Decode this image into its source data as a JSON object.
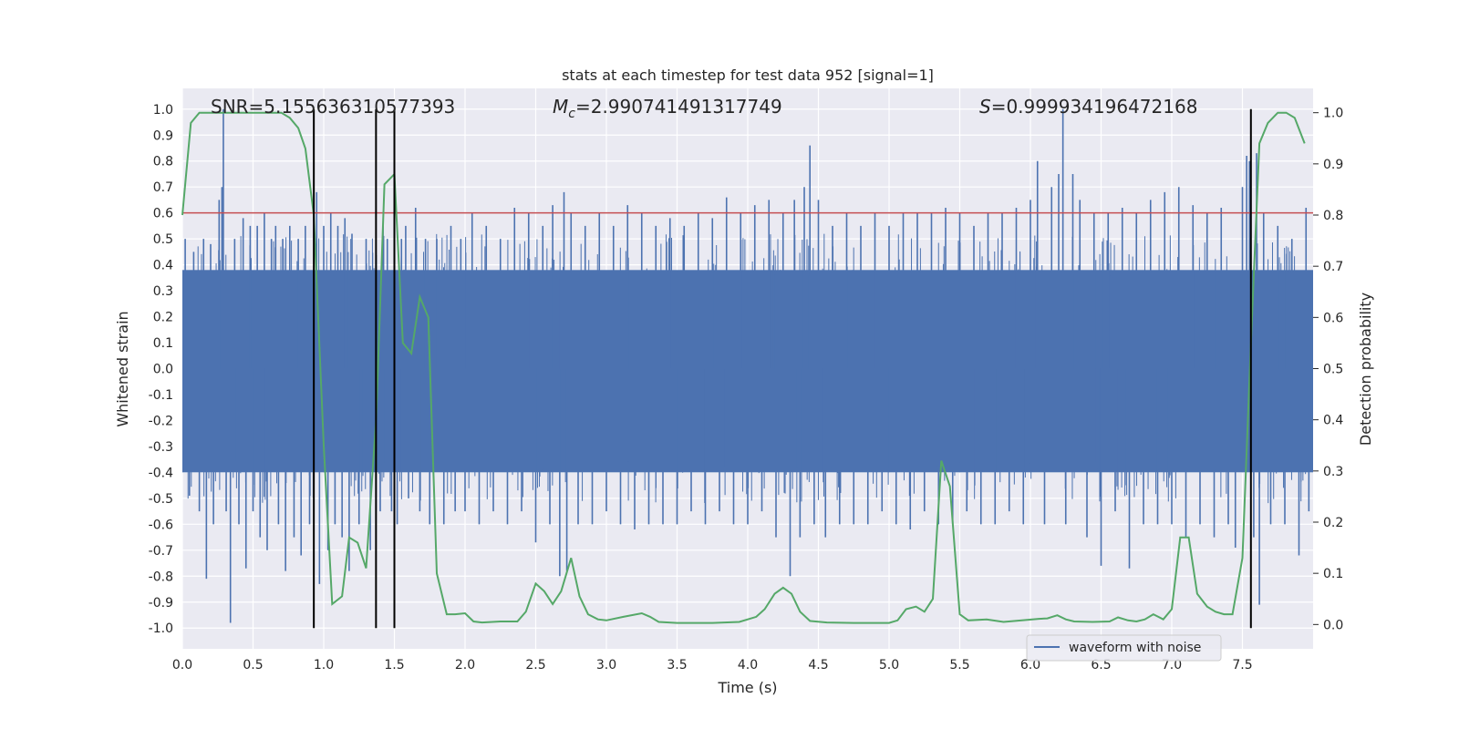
{
  "chart_data": {
    "type": "line",
    "title": "stats at each timestep for test data 952 [signal=1]",
    "xlabel": "Time (s)",
    "ylabel": "Whitened strain",
    "y2label": "Detection probability",
    "xlim": [
      0.0,
      8.0
    ],
    "ylim": [
      -1.08,
      1.08
    ],
    "y2lim": [
      -0.0475,
      1.0475
    ],
    "xticks": [
      "0.0",
      "0.5",
      "1.0",
      "1.5",
      "2.0",
      "2.5",
      "3.0",
      "3.5",
      "4.0",
      "4.5",
      "5.0",
      "5.5",
      "6.0",
      "6.5",
      "7.0",
      "7.5"
    ],
    "xtick_values": [
      0,
      0.5,
      1,
      1.5,
      2,
      2.5,
      3,
      3.5,
      4,
      4.5,
      5,
      5.5,
      6,
      6.5,
      7,
      7.5
    ],
    "yticks": [
      "1.0",
      "0.9",
      "0.8",
      "0.7",
      "0.6",
      "0.5",
      "0.4",
      "0.3",
      "0.2",
      "0.1",
      "0.0",
      "-0.1",
      "-0.2",
      "-0.3",
      "-0.4",
      "-0.5",
      "-0.6",
      "-0.7",
      "-0.8",
      "-0.9",
      "-1.0"
    ],
    "ytick_values": [
      1.0,
      0.9,
      0.8,
      0.7,
      0.6,
      0.5,
      0.4,
      0.3,
      0.2,
      0.1,
      0.0,
      -0.1,
      -0.2,
      -0.3,
      -0.4,
      -0.5,
      -0.6,
      -0.7,
      -0.8,
      -0.9,
      -1.0
    ],
    "y2ticks": [
      "1.0",
      "0.9",
      "0.8",
      "0.7",
      "0.6",
      "0.5",
      "0.4",
      "0.3",
      "0.2",
      "0.1",
      "0.0"
    ],
    "y2tick_values": [
      1.0,
      0.9,
      0.8,
      0.7,
      0.6,
      0.5,
      0.4,
      0.3,
      0.2,
      0.1,
      0.0
    ],
    "annotations": {
      "snr": "SNR=5.155636310577393",
      "mc_symbol": "M",
      "mc_subscript": "c",
      "mc_value": "=2.990741491317749",
      "s_symbol": "S",
      "s_value": "=0.999934196472168"
    },
    "threshold": 0.6,
    "vlines": [
      0.93,
      1.37,
      1.5,
      7.56
    ],
    "legend": {
      "label": "waveform with noise",
      "location": "lower-right"
    },
    "series": [
      {
        "name": "waveform with noise",
        "axis": "left",
        "color": "#4c72b0",
        "band_envelope": {
          "upper": 0.38,
          "lower": -0.4
        },
        "spikes": [
          [
            0.02,
            0.5
          ],
          [
            0.05,
            -0.49
          ],
          [
            0.08,
            0.45
          ],
          [
            0.12,
            -0.55
          ],
          [
            0.15,
            0.5
          ],
          [
            0.17,
            -0.81
          ],
          [
            0.2,
            0.48
          ],
          [
            0.22,
            -0.6
          ],
          [
            0.26,
            0.65
          ],
          [
            0.28,
            0.7
          ],
          [
            0.29,
            1.0
          ],
          [
            0.31,
            -0.55
          ],
          [
            0.34,
            -0.98
          ],
          [
            0.37,
            0.5
          ],
          [
            0.4,
            -0.6
          ],
          [
            0.43,
            0.58
          ],
          [
            0.45,
            -0.77
          ],
          [
            0.48,
            0.55
          ],
          [
            0.5,
            -0.55
          ],
          [
            0.53,
            0.55
          ],
          [
            0.55,
            -0.65
          ],
          [
            0.58,
            0.6
          ],
          [
            0.6,
            -0.7
          ],
          [
            0.63,
            0.5
          ],
          [
            0.66,
            0.55
          ],
          [
            0.68,
            -0.6
          ],
          [
            0.71,
            0.5
          ],
          [
            0.73,
            -0.78
          ],
          [
            0.76,
            0.55
          ],
          [
            0.79,
            -0.65
          ],
          [
            0.82,
            0.5
          ],
          [
            0.84,
            -0.72
          ],
          [
            0.87,
            0.55
          ],
          [
            0.9,
            -0.6
          ],
          [
            0.95,
            0.68
          ],
          [
            0.97,
            -0.83
          ],
          [
            1.0,
            0.55
          ],
          [
            1.03,
            -0.7
          ],
          [
            1.05,
            0.6
          ],
          [
            1.08,
            -0.6
          ],
          [
            1.1,
            0.55
          ],
          [
            1.13,
            -0.65
          ],
          [
            1.15,
            0.58
          ],
          [
            1.18,
            -0.78
          ],
          [
            1.2,
            0.52
          ],
          [
            1.25,
            -0.6
          ],
          [
            1.3,
            0.5
          ],
          [
            1.33,
            -0.7
          ],
          [
            1.4,
            -0.55
          ],
          [
            1.42,
            0.55
          ],
          [
            1.45,
            0.5
          ],
          [
            1.48,
            -0.55
          ],
          [
            1.52,
            -0.6
          ],
          [
            1.55,
            0.5
          ],
          [
            1.58,
            0.55
          ],
          [
            1.6,
            -0.5
          ],
          [
            1.65,
            0.62
          ],
          [
            1.68,
            -0.55
          ],
          [
            1.72,
            0.5
          ],
          [
            1.75,
            -0.6
          ],
          [
            1.8,
            0.5
          ],
          [
            1.85,
            -0.6
          ],
          [
            1.9,
            0.55
          ],
          [
            1.93,
            -0.55
          ],
          [
            1.97,
            0.5
          ],
          [
            2.0,
            -0.55
          ],
          [
            2.05,
            0.6
          ],
          [
            2.1,
            -0.6
          ],
          [
            2.15,
            0.55
          ],
          [
            2.2,
            -0.55
          ],
          [
            2.25,
            0.5
          ],
          [
            2.3,
            -0.6
          ],
          [
            2.35,
            0.62
          ],
          [
            2.4,
            -0.55
          ],
          [
            2.45,
            0.6
          ],
          [
            2.5,
            -0.67
          ],
          [
            2.55,
            0.55
          ],
          [
            2.6,
            -0.6
          ],
          [
            2.62,
            0.63
          ],
          [
            2.67,
            -0.8
          ],
          [
            2.7,
            0.68
          ],
          [
            2.72,
            -0.78
          ],
          [
            2.75,
            0.6
          ],
          [
            2.8,
            -0.6
          ],
          [
            2.85,
            0.55
          ],
          [
            2.9,
            -0.6
          ],
          [
            2.95,
            0.6
          ],
          [
            3.0,
            -0.55
          ],
          [
            3.05,
            0.55
          ],
          [
            3.1,
            -0.6
          ],
          [
            3.15,
            0.63
          ],
          [
            3.2,
            -0.62
          ],
          [
            3.25,
            0.6
          ],
          [
            3.3,
            -0.6
          ],
          [
            3.35,
            0.55
          ],
          [
            3.4,
            -0.6
          ],
          [
            3.45,
            0.58
          ],
          [
            3.5,
            -0.6
          ],
          [
            3.55,
            0.55
          ],
          [
            3.6,
            -0.55
          ],
          [
            3.65,
            0.6
          ],
          [
            3.7,
            -0.6
          ],
          [
            3.75,
            0.58
          ],
          [
            3.8,
            -0.55
          ],
          [
            3.85,
            0.66
          ],
          [
            3.9,
            -0.6
          ],
          [
            3.95,
            0.6
          ],
          [
            4.0,
            -0.6
          ],
          [
            4.05,
            0.63
          ],
          [
            4.1,
            -0.55
          ],
          [
            4.15,
            0.65
          ],
          [
            4.2,
            -0.65
          ],
          [
            4.25,
            0.6
          ],
          [
            4.3,
            -0.8
          ],
          [
            4.33,
            0.65
          ],
          [
            4.37,
            -0.65
          ],
          [
            4.4,
            0.7
          ],
          [
            4.44,
            0.86
          ],
          [
            4.47,
            -0.6
          ],
          [
            4.5,
            0.65
          ],
          [
            4.55,
            -0.65
          ],
          [
            4.6,
            0.55
          ],
          [
            4.65,
            -0.6
          ],
          [
            4.7,
            0.6
          ],
          [
            4.75,
            -0.6
          ],
          [
            4.8,
            0.55
          ],
          [
            4.85,
            -0.6
          ],
          [
            4.9,
            0.6
          ],
          [
            4.95,
            -0.55
          ],
          [
            5.0,
            0.55
          ],
          [
            5.05,
            -0.6
          ],
          [
            5.1,
            0.6
          ],
          [
            5.15,
            -0.62
          ],
          [
            5.2,
            0.6
          ],
          [
            5.25,
            -0.55
          ],
          [
            5.3,
            0.6
          ],
          [
            5.35,
            -0.6
          ],
          [
            5.4,
            0.62
          ],
          [
            5.45,
            -0.6
          ],
          [
            5.5,
            0.6
          ],
          [
            5.55,
            -0.55
          ],
          [
            5.6,
            0.55
          ],
          [
            5.65,
            -0.6
          ],
          [
            5.7,
            0.6
          ],
          [
            5.75,
            -0.6
          ],
          [
            5.8,
            0.6
          ],
          [
            5.85,
            -0.55
          ],
          [
            5.9,
            0.62
          ],
          [
            5.95,
            -0.6
          ],
          [
            6.0,
            0.65
          ],
          [
            6.05,
            0.8
          ],
          [
            6.1,
            -0.6
          ],
          [
            6.15,
            0.7
          ],
          [
            6.2,
            0.75
          ],
          [
            6.23,
            1.0
          ],
          [
            6.25,
            -0.6
          ],
          [
            6.3,
            0.75
          ],
          [
            6.35,
            0.65
          ],
          [
            6.4,
            -0.65
          ],
          [
            6.45,
            0.6
          ],
          [
            6.5,
            -0.76
          ],
          [
            6.55,
            0.6
          ],
          [
            6.6,
            -0.55
          ],
          [
            6.65,
            0.62
          ],
          [
            6.7,
            -0.77
          ],
          [
            6.75,
            0.6
          ],
          [
            6.8,
            -0.6
          ],
          [
            6.85,
            0.65
          ],
          [
            6.9,
            -0.6
          ],
          [
            6.95,
            0.68
          ],
          [
            7.0,
            -0.6
          ],
          [
            7.05,
            0.7
          ],
          [
            7.1,
            -0.65
          ],
          [
            7.15,
            0.63
          ],
          [
            7.2,
            -0.6
          ],
          [
            7.25,
            0.6
          ],
          [
            7.3,
            -0.65
          ],
          [
            7.35,
            0.62
          ],
          [
            7.4,
            -0.6
          ],
          [
            7.45,
            -0.69
          ],
          [
            7.5,
            0.7
          ],
          [
            7.53,
            0.82
          ],
          [
            7.55,
            0.8
          ],
          [
            7.58,
            -0.65
          ],
          [
            7.6,
            0.83
          ],
          [
            7.62,
            -0.91
          ],
          [
            7.65,
            0.6
          ],
          [
            7.7,
            -0.6
          ],
          [
            7.75,
            0.55
          ],
          [
            7.8,
            -0.6
          ],
          [
            7.85,
            0.5
          ],
          [
            7.9,
            -0.72
          ],
          [
            7.95,
            0.62
          ],
          [
            7.97,
            -0.55
          ]
        ]
      },
      {
        "name": "detection probability",
        "axis": "right",
        "color": "#55a868",
        "x": [
          0.0,
          0.06,
          0.12,
          0.2,
          0.3,
          0.4,
          0.5,
          0.6,
          0.7,
          0.76,
          0.82,
          0.87,
          0.93,
          1.0,
          1.06,
          1.13,
          1.18,
          1.24,
          1.3,
          1.37,
          1.43,
          1.5,
          1.56,
          1.62,
          1.68,
          1.74,
          1.8,
          1.87,
          1.93,
          2.0,
          2.06,
          2.12,
          2.25,
          2.37,
          2.43,
          2.5,
          2.56,
          2.62,
          2.68,
          2.75,
          2.81,
          2.87,
          2.94,
          3.0,
          3.12,
          3.25,
          3.31,
          3.37,
          3.5,
          3.75,
          3.94,
          4.06,
          4.12,
          4.19,
          4.25,
          4.31,
          4.37,
          4.44,
          4.56,
          4.75,
          4.87,
          5.0,
          5.06,
          5.12,
          5.19,
          5.25,
          5.31,
          5.37,
          5.43,
          5.5,
          5.56,
          5.69,
          5.81,
          5.94,
          6.06,
          6.12,
          6.19,
          6.25,
          6.31,
          6.44,
          6.56,
          6.62,
          6.69,
          6.75,
          6.81,
          6.87,
          6.94,
          7.0,
          7.06,
          7.12,
          7.18,
          7.25,
          7.31,
          7.37,
          7.43,
          7.5,
          7.56,
          7.62,
          7.68,
          7.75,
          7.81,
          7.87,
          7.94
        ],
        "values": [
          0.8,
          0.98,
          1.0,
          1.0,
          1.0,
          1.0,
          1.0,
          1.0,
          1.0,
          0.99,
          0.97,
          0.93,
          0.8,
          0.35,
          0.04,
          0.055,
          0.17,
          0.16,
          0.11,
          0.4,
          0.86,
          0.88,
          0.55,
          0.53,
          0.64,
          0.6,
          0.1,
          0.02,
          0.02,
          0.022,
          0.006,
          0.004,
          0.006,
          0.006,
          0.025,
          0.08,
          0.065,
          0.04,
          0.065,
          0.13,
          0.055,
          0.02,
          0.01,
          0.008,
          0.015,
          0.022,
          0.015,
          0.005,
          0.003,
          0.003,
          0.005,
          0.015,
          0.03,
          0.06,
          0.072,
          0.06,
          0.025,
          0.007,
          0.004,
          0.003,
          0.003,
          0.003,
          0.008,
          0.03,
          0.035,
          0.025,
          0.05,
          0.32,
          0.27,
          0.02,
          0.008,
          0.01,
          0.005,
          0.008,
          0.011,
          0.012,
          0.018,
          0.01,
          0.006,
          0.005,
          0.006,
          0.014,
          0.008,
          0.006,
          0.01,
          0.02,
          0.01,
          0.03,
          0.17,
          0.17,
          0.06,
          0.035,
          0.025,
          0.02,
          0.02,
          0.13,
          0.55,
          0.94,
          0.98,
          1.0,
          1.0,
          0.99,
          0.94
        ]
      }
    ]
  }
}
